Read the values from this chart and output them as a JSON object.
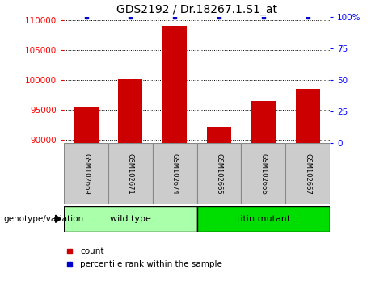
{
  "title": "GDS2192 / Dr.18267.1.S1_at",
  "samples": [
    "GSM102669",
    "GSM102671",
    "GSM102674",
    "GSM102665",
    "GSM102666",
    "GSM102667"
  ],
  "counts": [
    95600,
    100100,
    109000,
    92200,
    96500,
    98500
  ],
  "percentiles": [
    100,
    100,
    100,
    100,
    100,
    100
  ],
  "groups": [
    {
      "name": "wild type",
      "indices": [
        0,
        1,
        2
      ],
      "color": "#AAFFAA"
    },
    {
      "name": "titin mutant",
      "indices": [
        3,
        4,
        5
      ],
      "color": "#00DD00"
    }
  ],
  "ylim_left": [
    89500,
    110500
  ],
  "yticks_left": [
    90000,
    95000,
    100000,
    105000,
    110000
  ],
  "ylim_right": [
    0,
    100
  ],
  "yticks_right": [
    0,
    25,
    50,
    75,
    100
  ],
  "bar_color": "#CC0000",
  "percentile_color": "#0000CC",
  "bg_color": "#FFFFFF",
  "bar_width": 0.55,
  "title_fontsize": 10,
  "tick_fontsize": 7.5,
  "label_fontsize": 8,
  "group_label": "genotype/variation"
}
